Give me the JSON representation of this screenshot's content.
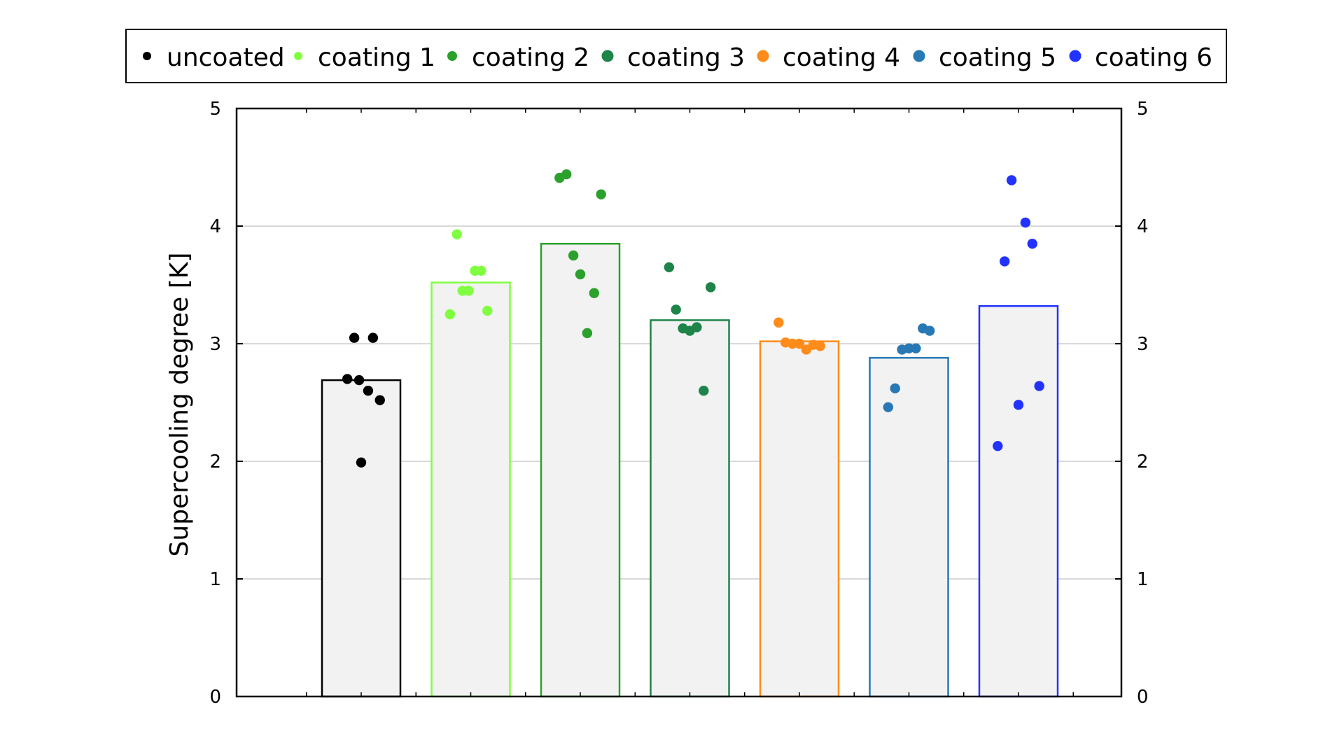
{
  "chart_data": {
    "type": "bar",
    "title": "",
    "xlabel": "",
    "ylabel": "Supercooling degree [K]",
    "ylim": [
      0,
      5
    ],
    "yticks": [
      0,
      1,
      2,
      3,
      4,
      5
    ],
    "secondary_y_axis": true,
    "grid": "horizontal",
    "legend": "top",
    "bar_fill": "#f2f2f2",
    "series": [
      {
        "name": "uncoated",
        "color": "#000000",
        "mean": 2.69,
        "points": [
          [
            -0.2,
            2.7
          ],
          [
            -0.1,
            3.05
          ],
          [
            0.0,
            1.99
          ],
          [
            -0.03,
            2.69
          ],
          [
            0.1,
            2.6
          ],
          [
            0.17,
            3.05
          ],
          [
            0.27,
            2.52
          ]
        ]
      },
      {
        "name": "coating 1",
        "color": "#80ff40",
        "mean": 3.52,
        "points": [
          [
            -0.3,
            3.25
          ],
          [
            -0.2,
            3.93
          ],
          [
            -0.12,
            3.45
          ],
          [
            -0.03,
            3.45
          ],
          [
            0.06,
            3.62
          ],
          [
            0.15,
            3.62
          ],
          [
            0.24,
            3.28
          ]
        ]
      },
      {
        "name": "coating 2",
        "color": "#2ca02c",
        "mean": 3.85,
        "points": [
          [
            -0.3,
            4.41
          ],
          [
            -0.2,
            4.44
          ],
          [
            -0.1,
            3.75
          ],
          [
            0.0,
            3.59
          ],
          [
            0.1,
            3.09
          ],
          [
            0.2,
            3.43
          ],
          [
            0.3,
            4.27
          ]
        ]
      },
      {
        "name": "coating 3",
        "color": "#1e8449",
        "mean": 3.2,
        "points": [
          [
            -0.3,
            3.65
          ],
          [
            -0.2,
            3.29
          ],
          [
            -0.1,
            3.13
          ],
          [
            0.0,
            3.11
          ],
          [
            0.1,
            3.14
          ],
          [
            0.2,
            2.6
          ],
          [
            0.3,
            3.48
          ]
        ]
      },
      {
        "name": "coating 4",
        "color": "#ff8c1a",
        "mean": 3.02,
        "points": [
          [
            -0.3,
            3.18
          ],
          [
            -0.2,
            3.01
          ],
          [
            -0.1,
            3.0
          ],
          [
            0.0,
            3.0
          ],
          [
            0.1,
            2.95
          ],
          [
            0.2,
            2.99
          ],
          [
            0.3,
            2.98
          ]
        ]
      },
      {
        "name": "coating 5",
        "color": "#2878b5",
        "mean": 2.88,
        "points": [
          [
            -0.3,
            2.46
          ],
          [
            -0.2,
            2.62
          ],
          [
            -0.1,
            2.95
          ],
          [
            0.0,
            2.96
          ],
          [
            0.1,
            2.96
          ],
          [
            0.2,
            3.13
          ],
          [
            0.3,
            3.11
          ]
        ]
      },
      {
        "name": "coating 6",
        "color": "#2233ff",
        "mean": 3.32,
        "points": [
          [
            -0.3,
            2.13
          ],
          [
            -0.2,
            3.7
          ],
          [
            -0.1,
            4.39
          ],
          [
            0.0,
            2.48
          ],
          [
            0.1,
            4.03
          ],
          [
            0.2,
            3.85
          ],
          [
            0.3,
            2.64
          ]
        ]
      }
    ]
  }
}
